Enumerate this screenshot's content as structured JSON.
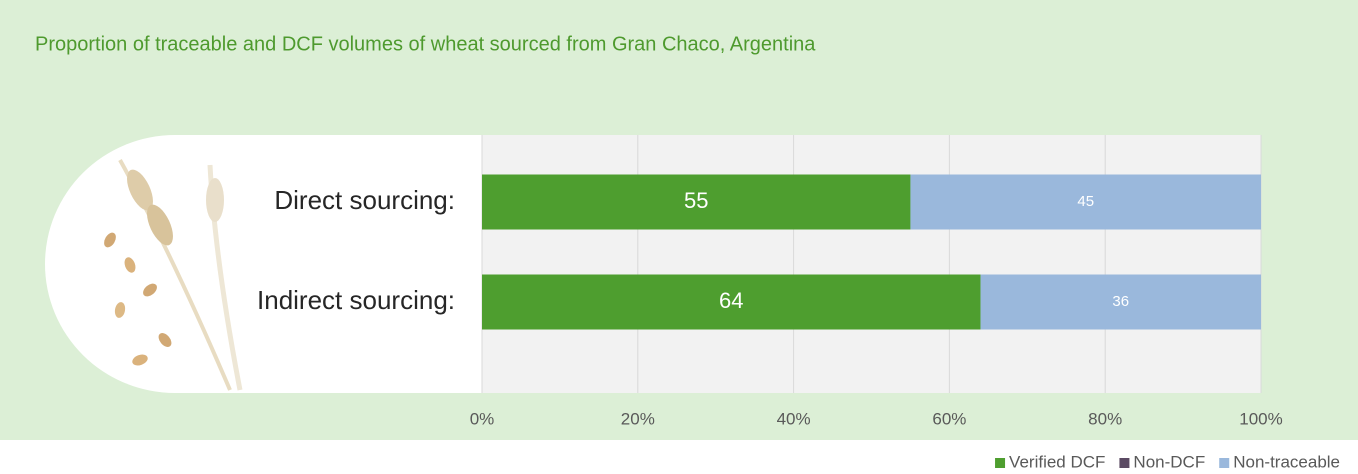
{
  "chart_data": {
    "type": "stacked-bar-horizontal",
    "title": "Proportion of traceable and DCF volumes of wheat sourced from Gran Chaco, Argentina",
    "categories": [
      "Direct sourcing:",
      "Indirect sourcing:"
    ],
    "series": [
      {
        "name": "Verified DCF",
        "color": "#4e9e2f",
        "values": [
          55,
          64
        ]
      },
      {
        "name": "Non-DCF",
        "color": "#5b4a63",
        "values": [
          0,
          0
        ]
      },
      {
        "name": "Non-traceable",
        "color": "#9ab8dc",
        "values": [
          45,
          36
        ]
      }
    ],
    "xlim": [
      0,
      100
    ],
    "xticks": [
      {
        "value": 0,
        "label": "0%"
      },
      {
        "value": 20,
        "label": "20%"
      },
      {
        "value": 40,
        "label": "40%"
      },
      {
        "value": 60,
        "label": "60%"
      },
      {
        "value": 80,
        "label": "80%"
      },
      {
        "value": 100,
        "label": "100%"
      }
    ],
    "grid": true
  }
}
